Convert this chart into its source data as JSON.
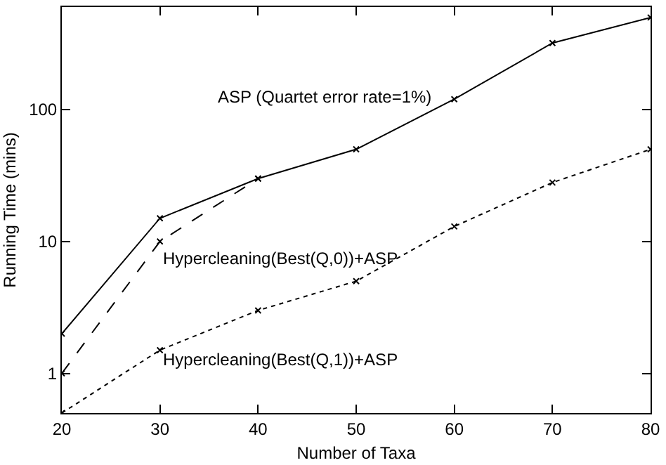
{
  "chart_data": {
    "type": "line",
    "xlabel": "Number of Taxa",
    "ylabel": "Running Time (mins)",
    "log": "y",
    "grid": false,
    "legend": false,
    "marker": "cross",
    "x": [
      20,
      30,
      40,
      50,
      60,
      70,
      80
    ],
    "xlim": [
      20,
      80
    ],
    "xticks": [
      20,
      30,
      40,
      50,
      60,
      70,
      80
    ],
    "ylim": [
      0.5,
      600
    ],
    "yticks": [
      1,
      10,
      100
    ],
    "series": [
      {
        "name": "ASP (Quartet error rate=1%)",
        "color": "#000000",
        "line_style": "solid",
        "values": [
          2,
          15,
          30,
          50,
          120,
          320,
          500
        ]
      },
      {
        "name": "Hypercleaning(Best(Q,0))+ASP",
        "color": "#000000",
        "line_style": "dashed",
        "values": [
          1,
          10,
          30,
          null,
          null,
          null,
          null
        ]
      },
      {
        "name": "Hypercleaning(Best(Q,1))+ASP",
        "color": "#000000",
        "line_style": "dotted",
        "values": [
          0.5,
          1.5,
          3,
          5,
          13,
          28,
          50
        ]
      }
    ]
  }
}
